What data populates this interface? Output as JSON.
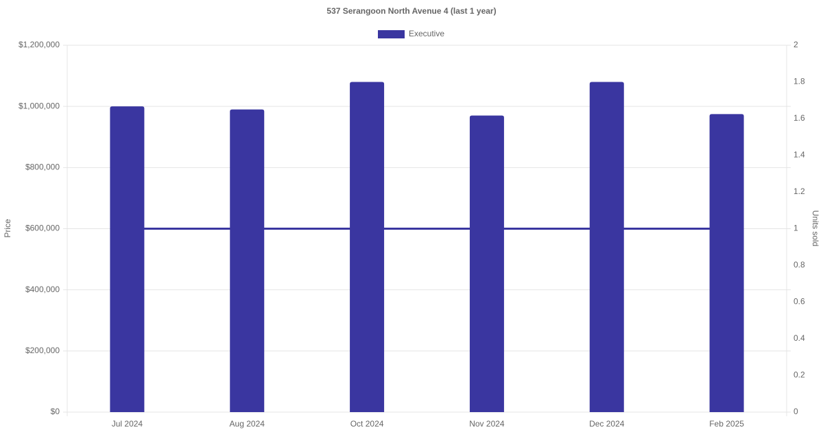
{
  "chart_data": {
    "type": "bar",
    "title": "537 Serangoon North Avenue 4 (last 1 year)",
    "categories": [
      "Jul 2024",
      "Aug 2024",
      "Oct 2024",
      "Nov 2024",
      "Dec 2024",
      "Feb 2025"
    ],
    "series": [
      {
        "name": "Executive",
        "color": "#3a36a0",
        "values": [
          1000000,
          990000,
          1080000,
          970000,
          1080000,
          975000
        ]
      },
      {
        "type": "line",
        "axis": "y2",
        "color": "#3a36a0",
        "values": [
          1,
          1,
          1,
          1,
          1,
          1
        ]
      }
    ],
    "ylabel": "Price",
    "y2label": "Units sold",
    "ylim": [
      0,
      1200000
    ],
    "yticks": [
      {
        "value": 0,
        "label": "$0"
      },
      {
        "value": 200000,
        "label": "$200,000"
      },
      {
        "value": 400000,
        "label": "$400,000"
      },
      {
        "value": 600000,
        "label": "$600,000"
      },
      {
        "value": 800000,
        "label": "$800,000"
      },
      {
        "value": 1000000,
        "label": "$1,000,000"
      },
      {
        "value": 1200000,
        "label": "$1,200,000"
      }
    ],
    "y2lim": [
      0,
      2
    ],
    "y2ticks": [
      0,
      0.2,
      0.4,
      0.6,
      0.8,
      1,
      1.2,
      1.4,
      1.6,
      1.8,
      2
    ],
    "grid": true,
    "legend": "top"
  }
}
